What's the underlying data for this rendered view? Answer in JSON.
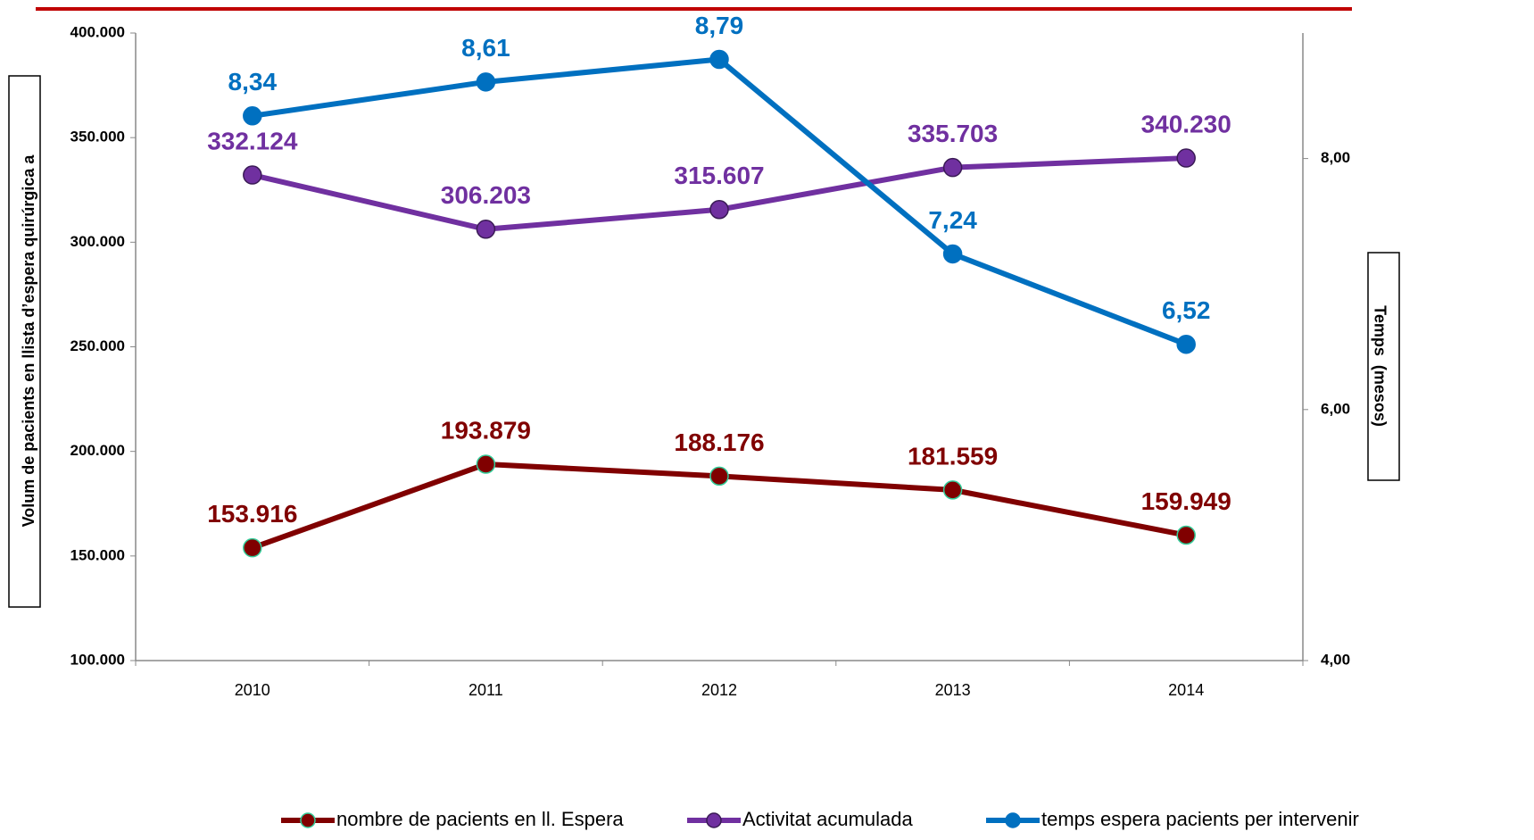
{
  "chart_data": {
    "type": "line",
    "y_label": "Volum de pacients en llista d’espera quirúrgica a",
    "y2_label": "Temps  (mesos)",
    "categories": [
      "2010",
      "2011",
      "2012",
      "2013",
      "2014"
    ],
    "series": [
      {
        "name": "nombre de pacients en ll. Espera",
        "color": "#800000",
        "marker_edge": "#33cc99",
        "values": [
          153916,
          193879,
          188176,
          181559,
          159949
        ],
        "value_labels": [
          "153.916",
          "193.879",
          "188.176",
          "181.559",
          "159.949"
        ]
      },
      {
        "name": "Activitat acumulada",
        "color": "#7030a0",
        "marker_edge": "#3a1a55",
        "values": [
          332124,
          306203,
          315607,
          335703,
          340230
        ],
        "value_labels": [
          "332.124",
          "306.203",
          "315.607",
          "335.703",
          "340.230"
        ]
      },
      {
        "name": "temps espera pacients per intervenir",
        "color": "#0070c0",
        "marker_edge": "#0070c0",
        "axis": "y2",
        "values": [
          8.34,
          8.61,
          8.79,
          7.24,
          6.52
        ],
        "value_labels": [
          "8,34",
          "8,61",
          "8,79",
          "7,24",
          "6,52"
        ]
      }
    ],
    "ylim": [
      100000,
      400000
    ],
    "yticks": [
      {
        "value": 100000,
        "label": "100.000"
      },
      {
        "value": 150000,
        "label": "150.000"
      },
      {
        "value": 200000,
        "label": "200.000"
      },
      {
        "value": 250000,
        "label": "250.000"
      },
      {
        "value": 300000,
        "label": "300.000"
      },
      {
        "value": 350000,
        "label": "350.000"
      },
      {
        "value": 400000,
        "label": "400.000"
      }
    ],
    "y2lim": [
      4,
      9
    ],
    "y2ticks": [
      {
        "value": 4,
        "label": "4,00"
      },
      {
        "value": 6,
        "label": "6,00"
      },
      {
        "value": 8,
        "label": "8,00"
      }
    ],
    "legend": "bottom"
  }
}
